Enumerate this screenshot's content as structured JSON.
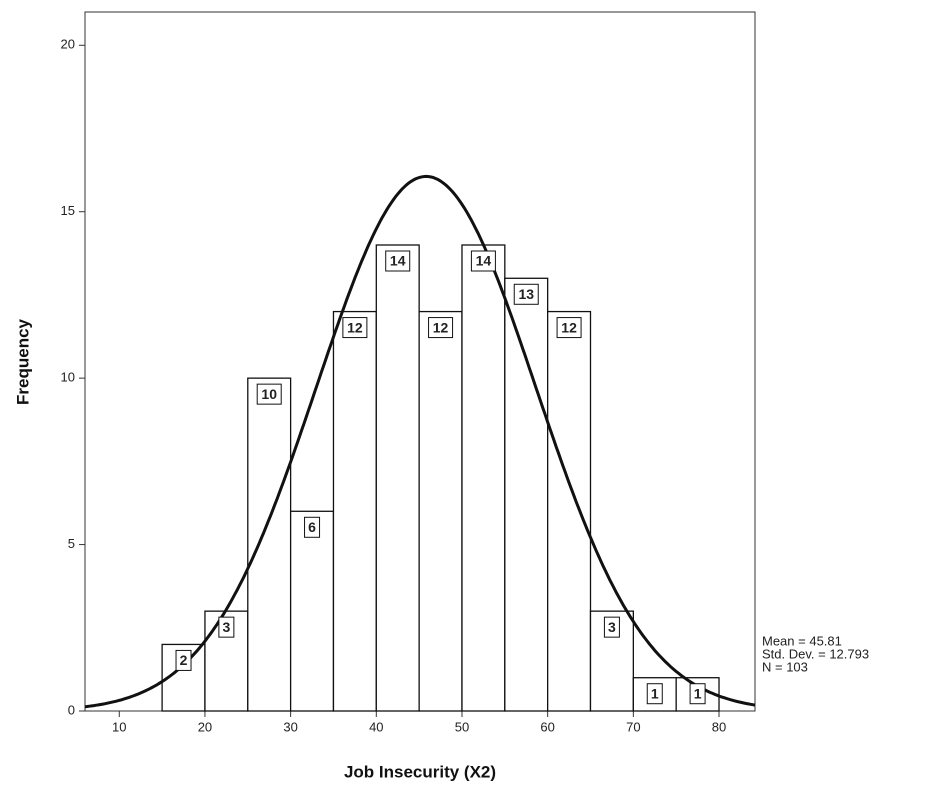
{
  "chart_data": {
    "type": "histogram",
    "x_label": "Job Insecurity (X2)",
    "y_label": "Frequency",
    "bins": [
      15,
      20,
      25,
      30,
      35,
      40,
      45,
      50,
      55,
      60,
      65,
      70,
      75,
      80
    ],
    "values": [
      2,
      3,
      10,
      6,
      12,
      14,
      12,
      14,
      13,
      12,
      3,
      1,
      1
    ],
    "color": "#ffffff",
    "xlim": [
      6,
      84.2
    ],
    "ylim": [
      0,
      21
    ],
    "xticks": [
      10,
      20,
      30,
      40,
      50,
      60,
      70,
      80
    ],
    "yticks": [
      0,
      5,
      10,
      15,
      20
    ],
    "normal_curve": {
      "mean": 45.81,
      "sd": 12.793,
      "n": 103
    },
    "stats_labels": [
      "Mean = 45.81",
      "Std. Dev. = 12.793",
      "N = 103"
    ]
  }
}
